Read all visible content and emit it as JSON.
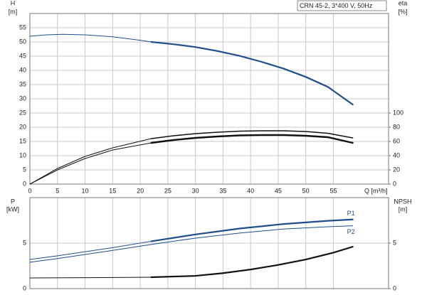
{
  "chart_data": [
    {
      "type": "line",
      "title": "CRN 45-2, 3*400 V, 50Hz",
      "ylabel": "H",
      "yunit": "[m]",
      "y2label": "eta",
      "y2unit": "[%]",
      "xlabel": "Q [m³/h]",
      "xlim": [
        0,
        65
      ],
      "xticks": [
        0,
        5,
        10,
        15,
        20,
        25,
        30,
        35,
        40,
        45,
        50,
        55
      ],
      "ylim": [
        0,
        60
      ],
      "yticks": [
        0,
        5,
        10,
        15,
        20,
        25,
        30,
        35,
        40,
        45,
        50,
        55
      ],
      "y2lim": [
        0,
        240
      ],
      "y2ticks": [
        0,
        20,
        40,
        60,
        80,
        100
      ],
      "grid": true,
      "series": [
        {
          "color": "#1f4e8c",
          "width": 1,
          "x": [
            0,
            3,
            6,
            10,
            15,
            20,
            22
          ],
          "values": [
            52,
            52.5,
            52.7,
            52.5,
            51.8,
            50.6,
            50
          ]
        },
        {
          "color": "#1f4e8c",
          "width": 2.2,
          "x": [
            22,
            26,
            30,
            34,
            38,
            42,
            46,
            50,
            54,
            58.5
          ],
          "values": [
            50,
            49.2,
            48.2,
            46.8,
            45.1,
            43,
            40.6,
            37.7,
            34.2,
            28
          ]
        },
        {
          "color": "#111111",
          "width": 1,
          "axis": "y2",
          "x": [
            0,
            5,
            10,
            15,
            22
          ],
          "values": [
            0,
            22,
            39,
            51,
            64
          ]
        },
        {
          "color": "#111111",
          "width": 1.6,
          "axis": "y2",
          "x": [
            22,
            26,
            30,
            34,
            38,
            42,
            46,
            50,
            54,
            58.5
          ],
          "values": [
            64,
            68,
            71,
            73,
            74.5,
            75,
            75,
            74,
            71.5,
            65
          ]
        },
        {
          "color": "#111111",
          "width": 1,
          "axis": "y2",
          "x": [
            0,
            5,
            10,
            15,
            22
          ],
          "values": [
            0,
            20,
            36,
            48,
            58
          ]
        },
        {
          "color": "#111111",
          "width": 2.4,
          "axis": "y2",
          "x": [
            22,
            26,
            30,
            34,
            38,
            42,
            46,
            50,
            54,
            58.5
          ],
          "values": [
            58,
            62,
            65,
            67,
            68.5,
            69,
            69,
            68,
            66,
            58
          ]
        }
      ]
    },
    {
      "type": "line",
      "ylabel": "P",
      "yunit": "[kW]",
      "y2label": "NPSH",
      "y2unit": "[m]",
      "xlim": [
        0,
        65
      ],
      "ylim": [
        0,
        10
      ],
      "yticks": [
        0,
        5
      ],
      "y2lim": [
        0,
        10
      ],
      "y2ticks": [
        0,
        5
      ],
      "grid": true,
      "series": [
        {
          "color": "#1f4e8c",
          "width": 1,
          "x": [
            0,
            5,
            10,
            15,
            22
          ],
          "values": [
            3.2,
            3.6,
            4.05,
            4.5,
            5.2
          ]
        },
        {
          "name": "P1",
          "color": "#1f4e8c",
          "width": 2.2,
          "x": [
            22,
            30,
            38,
            46,
            54,
            58.5
          ],
          "values": [
            5.2,
            5.95,
            6.6,
            7.1,
            7.45,
            7.6
          ]
        },
        {
          "name": "P2",
          "color": "#1f4e8c",
          "width": 1,
          "x": [
            0,
            5,
            10,
            15,
            22,
            30,
            38,
            46,
            54,
            58.5
          ],
          "values": [
            2.9,
            3.3,
            3.75,
            4.2,
            4.85,
            5.55,
            6.1,
            6.55,
            6.8,
            6.9
          ]
        },
        {
          "color": "#111111",
          "width": 1,
          "axis": "y2",
          "x": [
            0,
            10,
            22
          ],
          "values": [
            1.17,
            1.2,
            1.25
          ]
        },
        {
          "color": "#111111",
          "width": 2.2,
          "axis": "y2",
          "x": [
            22,
            30,
            35,
            40,
            45,
            50,
            55,
            58.5
          ],
          "values": [
            1.25,
            1.4,
            1.7,
            2.1,
            2.6,
            3.2,
            3.95,
            4.6
          ]
        }
      ]
    }
  ]
}
